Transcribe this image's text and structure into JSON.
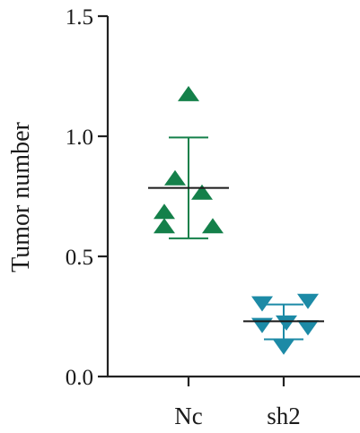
{
  "chart_data": {
    "type": "scatter",
    "ylabel": "Tumor number",
    "ylim": [
      0,
      1.5
    ],
    "yticks": [
      {
        "value": 0.0,
        "label": "0.0"
      },
      {
        "value": 0.5,
        "label": "0.5"
      },
      {
        "value": 1.0,
        "label": "1.0"
      },
      {
        "value": 1.5,
        "label": "1.5"
      }
    ],
    "categories": [
      "Nc",
      "sh2"
    ],
    "grid": false,
    "series": [
      {
        "category": "Nc",
        "marker": "triangle-up",
        "color": "#14804a",
        "points": [
          1.17,
          0.82,
          0.76,
          0.68,
          0.62,
          0.62
        ],
        "mean": 0.785,
        "sd_upper": 0.995,
        "sd_lower": 0.575
      },
      {
        "category": "sh2",
        "marker": "triangle-down",
        "color": "#1c8aa6",
        "points": [
          0.31,
          0.32,
          0.23,
          0.22,
          0.21,
          0.13
        ],
        "mean": 0.23,
        "sd_upper": 0.3,
        "sd_lower": 0.155
      }
    ]
  }
}
